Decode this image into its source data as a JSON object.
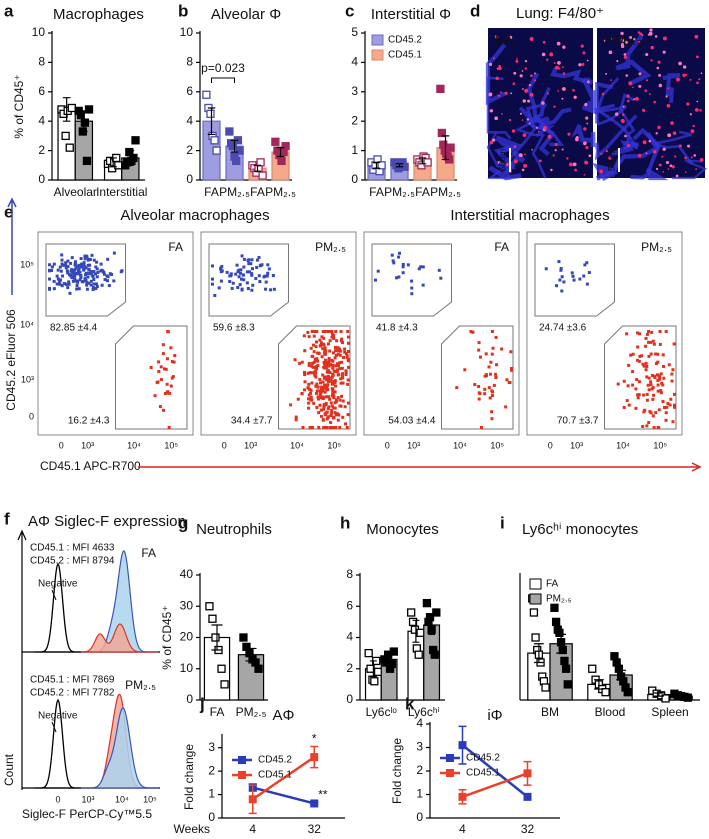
{
  "chart_data": [
    {
      "type": "bar",
      "label": "a",
      "title": "Macrophages",
      "ylabel": "% of CD45⁺",
      "categories": [
        "Alveolar",
        "Interstitial"
      ],
      "ylim": [
        0,
        10
      ],
      "yticks": [
        0,
        2,
        4,
        6,
        8,
        10
      ],
      "series": [
        {
          "color": "#ffffff",
          "edge": "#000000",
          "marker": "#000000",
          "hollow": true,
          "values": [
            4.8,
            1.2
          ],
          "errors": [
            0.8,
            0.3
          ],
          "points": [
            [
              4.8,
              4.5,
              3.0,
              4.7,
              2.2,
              4.9
            ],
            [
              1.1,
              1.3,
              0.8,
              1.2,
              1.5,
              1.0
            ]
          ]
        },
        {
          "color": "#a6a6a6",
          "edge": "#000000",
          "marker": "#000000",
          "hollow": false,
          "values": [
            4.0,
            1.5
          ],
          "errors": [
            0.7,
            0.5
          ],
          "points": [
            [
              4.7,
              4.4,
              3.3,
              3.9,
              1.3,
              4.8
            ],
            [
              1.0,
              1.2,
              1.9,
              1.3,
              1.5,
              2.7
            ]
          ]
        }
      ]
    },
    {
      "type": "bar",
      "label": "b",
      "title": "Alveolar Φ",
      "annotation": "p=0.023",
      "categories": [
        "FA",
        "PM₂.₅",
        "FA",
        "PM₂.₅"
      ],
      "ylim": [
        0,
        10
      ],
      "yticks": [
        0,
        2,
        4,
        6,
        8,
        10
      ],
      "series": [
        {
          "color": "#9d9de0",
          "edge": "#6b6bc6",
          "marker": "#4b4bb0",
          "hollow": [
            true,
            false,
            true,
            false
          ],
          "values": [
            4.0,
            2.3,
            null,
            null
          ],
          "errors": [
            0.9,
            0.4,
            null,
            null
          ],
          "points": [
            [
              5.8,
              4.9,
              4.5,
              3.0,
              2.7,
              2.0
            ],
            [
              3.3,
              2.5,
              2.3,
              1.6,
              1.3,
              2.7,
              2.0
            ],
            null,
            null
          ]
        },
        {
          "color": "#f6a98a",
          "edge": "#d68a70",
          "marker": "#a3275b",
          "hollow": [
            true,
            false,
            true,
            false
          ],
          "values": [
            null,
            null,
            0.8,
            1.9
          ],
          "errors": [
            null,
            null,
            0.2,
            0.3
          ],
          "points": [
            null,
            null,
            [
              1.0,
              0.8,
              0.5,
              0.8,
              1.2,
              0.3
            ],
            [
              2.6,
              2.0,
              1.7,
              1.3,
              1.9,
              2.3
            ]
          ]
        }
      ]
    },
    {
      "type": "bar",
      "label": "c",
      "title": "Interstitial Φ",
      "categories": [
        "FA",
        "PM₂.₅",
        "FA",
        "PM₂.₅"
      ],
      "ylim": [
        0,
        5
      ],
      "yticks": [
        0,
        1,
        2,
        3,
        4,
        5
      ],
      "series": [
        {
          "name": "CD45.2",
          "color": "#9d9de0",
          "edge": "#6b6bc6",
          "marker": "#4b4bb0",
          "hollow": [
            true,
            false,
            true,
            false
          ],
          "values": [
            0.5,
            0.5,
            null,
            null
          ],
          "errors": [
            0.1,
            0.05,
            null,
            null
          ],
          "points": [
            [
              0.6,
              0.35,
              0.5,
              0.7,
              0.3,
              0.5
            ],
            [
              0.6,
              0.5,
              0.4,
              0.55,
              0.6,
              0.45
            ],
            null,
            null
          ]
        },
        {
          "name": "CD45.1",
          "color": "#f6a98a",
          "edge": "#d68a70",
          "marker": "#a3275b",
          "hollow": [
            true,
            false,
            true,
            false
          ],
          "values": [
            null,
            null,
            0.65,
            1.1
          ],
          "errors": [
            null,
            null,
            0.1,
            0.4
          ],
          "points": [
            null,
            null,
            [
              0.7,
              0.6,
              0.5,
              0.8,
              0.75,
              0.6
            ],
            [
              3.1,
              1.6,
              1.2,
              1.0,
              0.9,
              0.8,
              0.7,
              1.1
            ]
          ]
        }
      ]
    },
    {
      "type": "bar",
      "label": "g",
      "title": "Neutrophils",
      "ylabel": "% of CD45⁺",
      "categories": [
        "FA",
        "PM₂.₅"
      ],
      "ylim": [
        0,
        40
      ],
      "yticks": [
        0,
        10,
        20,
        30,
        40
      ],
      "series": [
        {
          "color": "#ffffff",
          "edge": "#000000",
          "marker": "#000000",
          "hollow": true,
          "values": [
            20,
            null
          ],
          "errors": [
            4,
            null
          ],
          "points": [
            [
              30,
              26,
              20,
              16,
              10,
              5
            ],
            null
          ]
        },
        {
          "color": "#a6a6a6",
          "edge": "#000000",
          "marker": "#000000",
          "hollow": false,
          "values": [
            null,
            14.5
          ],
          "errors": [
            null,
            2
          ],
          "points": [
            null,
            [
              20,
              17,
              15,
              13,
              12,
              10
            ]
          ]
        }
      ]
    },
    {
      "type": "bar",
      "label": "h",
      "title": "Monocytes",
      "categories": [
        "Ly6cˡᵒ",
        "Ly6cʰⁱ"
      ],
      "ylim": [
        0,
        8
      ],
      "yticks": [
        0,
        2,
        4,
        6,
        8
      ],
      "series": [
        {
          "color": "#ffffff",
          "edge": "#000000",
          "marker": "#000000",
          "hollow": true,
          "values": [
            2.0,
            4.4
          ],
          "errors": [
            0.5,
            0.7
          ],
          "points": [
            [
              3.0,
              2.0,
              1.3,
              1.2,
              2.5,
              1.8
            ],
            [
              5.6,
              5.0,
              4.5,
              3.3,
              2.9,
              4.3
            ]
          ]
        },
        {
          "color": "#a6a6a6",
          "edge": "#000000",
          "marker": "#000000",
          "hollow": false,
          "values": [
            2.6,
            4.8
          ],
          "errors": [
            0.3,
            0.6
          ],
          "points": [
            [
              2.6,
              2.4,
              2.9,
              2.0,
              2.3,
              3.1
            ],
            [
              6.2,
              5.0,
              5.3,
              4.5,
              3.2,
              2.9,
              5.6
            ]
          ]
        }
      ]
    },
    {
      "type": "bar",
      "label": "i",
      "title": "Ly6cʰⁱ monocytes",
      "categories": [
        "BM",
        "Blood",
        "Spleen"
      ],
      "ylim": [
        0,
        8
      ],
      "series": [
        {
          "name": "FA",
          "color": "#ffffff",
          "edge": "#000000",
          "marker": "#000000",
          "hollow": true,
          "values": [
            3.0,
            1.0,
            0.35
          ],
          "errors": [
            0.6,
            0.3,
            0.1
          ],
          "points": [
            [
              6.5,
              5.6,
              4.0,
              3.2,
              2.9,
              2.4,
              1.5,
              1.2,
              0.8
            ],
            [
              2.0,
              1.3,
              1.0,
              0.7,
              0.5
            ],
            [
              0.6,
              0.4,
              0.3,
              0.1
            ]
          ]
        },
        {
          "name": "PM₂.₅",
          "color": "#a6a6a6",
          "edge": "#000000",
          "marker": "#000000",
          "hollow": false,
          "values": [
            3.6,
            1.6,
            0.25
          ],
          "errors": [
            0.6,
            0.3,
            0.05
          ],
          "points": [
            [
              5.9,
              5.0,
              4.5,
              4.3,
              3.7,
              3.2,
              2.5,
              2.0,
              1.0
            ],
            [
              2.8,
              2.4,
              2.0,
              1.5,
              1.2,
              0.8,
              0.5
            ],
            [
              0.4,
              0.3,
              0.25,
              0.2,
              0.15
            ]
          ]
        }
      ]
    },
    {
      "type": "line",
      "label": "j",
      "title": "AΦ",
      "ylabel": "Fold change",
      "xlabel": "Weeks",
      "categories": [
        "4",
        "32"
      ],
      "ylim": [
        0,
        3.5
      ],
      "yticks": [
        0,
        1,
        2,
        3
      ],
      "series": [
        {
          "name": "CD45.2",
          "color": "#2b3bb5",
          "values": [
            1.3,
            0.62
          ],
          "errors": [
            0.15,
            0.05
          ],
          "annotation": [
            null,
            "**"
          ]
        },
        {
          "name": "CD45.1",
          "color": "#e8412c",
          "values": [
            0.8,
            2.6
          ],
          "errors": [
            0.6,
            0.45
          ],
          "annotation": [
            null,
            "*"
          ]
        }
      ]
    },
    {
      "type": "line",
      "label": "k",
      "title": "iΦ",
      "ylabel": "Fold change",
      "categories": [
        "4",
        "32"
      ],
      "ylim": [
        0,
        4
      ],
      "yticks": [
        0,
        1,
        2,
        3,
        4
      ],
      "series": [
        {
          "name": "CD45.2",
          "color": "#2b3bb5",
          "values": [
            3.1,
            0.9
          ],
          "errors": [
            0.8,
            0.05
          ]
        },
        {
          "name": "CD45.1",
          "color": "#e8412c",
          "values": [
            0.9,
            1.9
          ],
          "errors": [
            0.3,
            0.5
          ]
        }
      ]
    }
  ],
  "figure": {
    "d": {
      "label": "d",
      "title": "Lung: F4/80⁺",
      "images": [
        "FA",
        "PM₂.₅"
      ],
      "scale": "50um"
    },
    "e": {
      "label": "e",
      "groups": [
        "Alveolar macrophages",
        "Interstitial macrophages"
      ],
      "plots": [
        {
          "name": "FA",
          "gates": [
            "82.85 ±4.4",
            "16.2 ±4.3"
          ]
        },
        {
          "name": "PM₂.₅",
          "gates": [
            "59.6 ±8.3",
            "34.4 ±7.7"
          ]
        },
        {
          "name": "FA",
          "gates": [
            "41.8 ±4.3",
            "54.03 ±4.4"
          ]
        },
        {
          "name": "PM₂.₅",
          "gates": [
            "24.74 ±3.6",
            "70.7 ±3.7"
          ]
        }
      ],
      "ylabel": "CD45.2 eFluor 506",
      "xlabel": "CD45.1 APC-R700",
      "ticks": [
        "0",
        "10³",
        "10⁴",
        "10⁵"
      ]
    },
    "f": {
      "label": "f",
      "title": "AΦ Siglec-F expression",
      "panels": [
        {
          "name": "FA",
          "mfi": [
            "CD45.1 : MFI 4633",
            "CD45.2 : MFI 8794"
          ]
        },
        {
          "name": "PM₂.₅",
          "mfi": [
            "CD45.1 : MFI 7869",
            "CD45.2 : MFI 7782"
          ]
        }
      ],
      "negative": "Negative",
      "xlabel": "Siglec-F PerCP-Cy™5.5",
      "ylabel": "Count",
      "ticks": [
        "0",
        "10³",
        "10⁴",
        "10⁵"
      ]
    }
  }
}
